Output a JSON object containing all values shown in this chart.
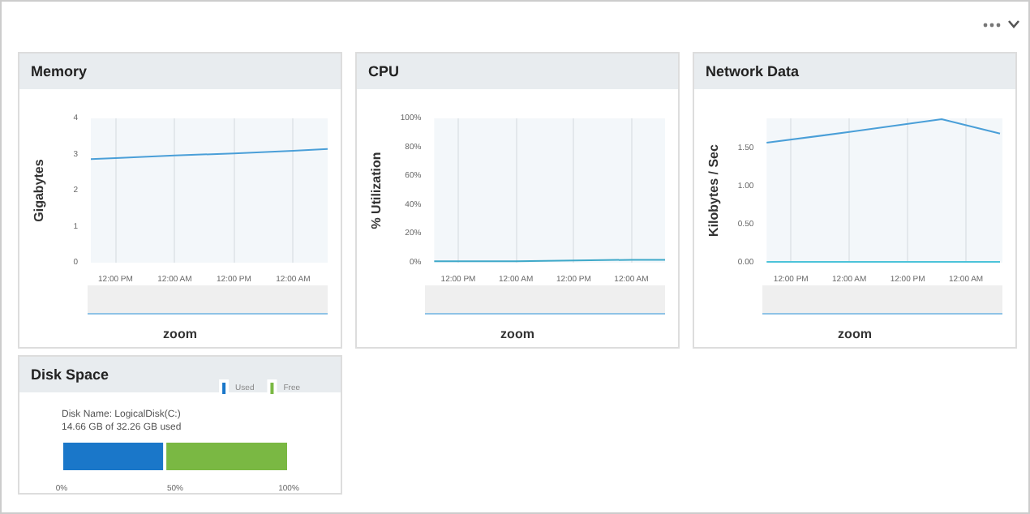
{
  "chart_data": [
    {
      "type": "line",
      "title": "Memory",
      "ylabel": "Gigabytes",
      "annotations": [
        "zoom"
      ],
      "xlim": [
        "--01-01T07:00",
        "--01-03T07:00"
      ],
      "xticks": [
        {
          "value": "--01-01T12:00",
          "label": "12:00 PM"
        },
        {
          "value": "--01-02T00:00",
          "label": "12:00 AM"
        },
        {
          "value": "--01-02T12:00",
          "label": "12:00 PM"
        },
        {
          "value": "--01-03T00:00",
          "label": "12:00 AM"
        }
      ],
      "ylim": [
        0,
        4
      ],
      "yticks": [
        0,
        1,
        2,
        3,
        4
      ],
      "grid": "x",
      "marker": "none",
      "series": [
        {
          "color": "#4a9fd8",
          "x": [
            "--01-01T07:00",
            "--01-01T12:00",
            "--01-02T00:00",
            "--01-02T12:00",
            "--01-03T00:00",
            "--01-03T07:00"
          ],
          "values": [
            2.87,
            2.9,
            2.97,
            3.03,
            3.1,
            3.15
          ]
        }
      ]
    },
    {
      "type": "line",
      "title": "CPU",
      "ylabel": "% Utilization",
      "annotations": [
        "zoom"
      ],
      "xlim": [
        "--01-01T07:00",
        "--01-03T07:00"
      ],
      "xticks": [
        {
          "value": "--01-01T12:00",
          "label": "12:00 PM"
        },
        {
          "value": "--01-02T00:00",
          "label": "12:00 AM"
        },
        {
          "value": "--01-02T12:00",
          "label": "12:00 PM"
        },
        {
          "value": "--01-03T00:00",
          "label": "12:00 AM"
        }
      ],
      "ylim": [
        0,
        100
      ],
      "yticks": [
        {
          "value": 0,
          "label": "0%"
        },
        {
          "value": 20,
          "label": "20%"
        },
        {
          "value": 40,
          "label": "40%"
        },
        {
          "value": 60,
          "label": "60%"
        },
        {
          "value": 80,
          "label": "80%"
        },
        {
          "value": 100,
          "label": "100%"
        }
      ],
      "grid": "x",
      "marker": "none",
      "series": [
        {
          "color": "#3fa9c9",
          "x": [
            "--01-01T07:00",
            "--01-02T00:00",
            "--01-03T00:00",
            "--01-03T07:00"
          ],
          "values": [
            1,
            1,
            2,
            2
          ]
        }
      ]
    },
    {
      "type": "line",
      "title": "Network Data",
      "ylabel": "Kilobytes / Sec",
      "annotations": [
        "zoom"
      ],
      "xlim": [
        "--01-01T07:00",
        "--01-03T07:30"
      ],
      "xticks": [
        {
          "value": "--01-01T12:00",
          "label": "12:00 PM"
        },
        {
          "value": "--01-02T00:00",
          "label": "12:00 AM"
        },
        {
          "value": "--01-02T12:00",
          "label": "12:00 PM"
        },
        {
          "value": "--01-03T00:00",
          "label": "12:00 AM"
        }
      ],
      "ylim": [
        0,
        1.9
      ],
      "yticks": [
        {
          "value": 0,
          "label": "0.00"
        },
        {
          "value": 0.5,
          "label": "0.50"
        },
        {
          "value": 1,
          "label": "1.00"
        },
        {
          "value": 1.5,
          "label": "1.50"
        }
      ],
      "grid": "x",
      "marker": "none",
      "series": [
        {
          "color": "#4a9fd8",
          "x": [
            "--01-01T07:00",
            "--01-02T00:00",
            "--01-02T19:00",
            "--01-03T07:00"
          ],
          "values": [
            1.58,
            1.72,
            1.89,
            1.7
          ]
        },
        {
          "color": "#4cc3d9",
          "x": [
            "--01-01T07:00",
            "--01-03T07:00"
          ],
          "values": [
            0.01,
            0.01
          ]
        }
      ]
    },
    {
      "type": "bar",
      "title": "Disk Space",
      "subtitle": "Disk Name: LogicalDisk(C:)",
      "annotations": [
        "14.66 GB of 32.26 GB used"
      ],
      "orientation": "horizontal",
      "stacked": true,
      "categories": [
        null
      ],
      "xlim": [
        0,
        100
      ],
      "xticks": [
        {
          "value": 0,
          "label": "0%"
        },
        {
          "value": 50,
          "label": "50%"
        },
        {
          "value": 100,
          "label": "100%"
        }
      ],
      "legend": "top right",
      "series": [
        {
          "name": "Used",
          "color": "#1a77c9",
          "values": [
            45.4
          ]
        },
        {
          "name": "Free",
          "color": "#7ab843",
          "values": [
            54.6
          ]
        }
      ]
    }
  ]
}
